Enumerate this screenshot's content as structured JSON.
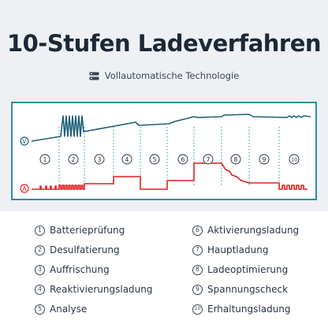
{
  "header": {
    "title": "10-Stufen Ladeverfahren",
    "subtitle": "Vollautomatische Technologie"
  },
  "diagram": {
    "voltage_label": "V",
    "current_label": "A",
    "stage_numbers": [
      "1",
      "2",
      "3",
      "4",
      "5",
      "6",
      "7",
      "8",
      "9",
      "10"
    ],
    "colors": {
      "frame": "#2e8ea0",
      "voltage": "#1f5f78",
      "current": "#e02020",
      "dotted": "#2e8ea0",
      "text": "#1c2836"
    }
  },
  "legend": {
    "items": [
      {
        "num": "1",
        "label": "Batterieprüfung"
      },
      {
        "num": "2",
        "label": "Desulfatierung"
      },
      {
        "num": "3",
        "label": "Auffrischung"
      },
      {
        "num": "4",
        "label": "Reaktivierungsladung"
      },
      {
        "num": "5",
        "label": "Analyse"
      },
      {
        "num": "6",
        "label": "Aktivierungsladung"
      },
      {
        "num": "7",
        "label": "Hauptladung"
      },
      {
        "num": "8",
        "label": "Ladeoptimierung"
      },
      {
        "num": "9",
        "label": "Spannungscheck"
      },
      {
        "num": "10",
        "label": "Erhaltungsladung"
      }
    ]
  }
}
